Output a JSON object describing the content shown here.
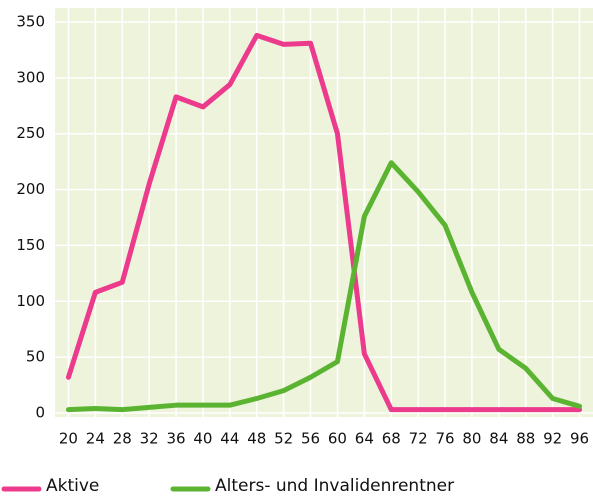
{
  "chart_data": {
    "type": "line",
    "x": [
      20,
      24,
      28,
      32,
      36,
      40,
      44,
      48,
      52,
      56,
      60,
      64,
      68,
      72,
      76,
      80,
      84,
      88,
      92,
      96
    ],
    "series": [
      {
        "name": "Aktive",
        "color": "#ec3a8c",
        "values": [
          32,
          108,
          117,
          205,
          283,
          274,
          294,
          338,
          330,
          331,
          250,
          53,
          3,
          3,
          3,
          3,
          3,
          3,
          3,
          3
        ]
      },
      {
        "name": "Alters- und Invalidenrentner",
        "color": "#5bb431",
        "values": [
          3,
          4,
          3,
          5,
          7,
          7,
          7,
          13,
          20,
          32,
          46,
          176,
          224,
          198,
          168,
          108,
          57,
          40,
          13,
          6
        ]
      }
    ],
    "xlim": [
      18,
      98
    ],
    "xticks": [
      20,
      24,
      28,
      32,
      36,
      40,
      44,
      48,
      52,
      56,
      60,
      64,
      68,
      72,
      76,
      80,
      84,
      88,
      92,
      96
    ],
    "ylim": [
      0,
      350
    ],
    "yticks": [
      0,
      50,
      100,
      150,
      200,
      250,
      300,
      350
    ],
    "grid": true,
    "legend": "bottom",
    "background": "#eef3dc"
  }
}
